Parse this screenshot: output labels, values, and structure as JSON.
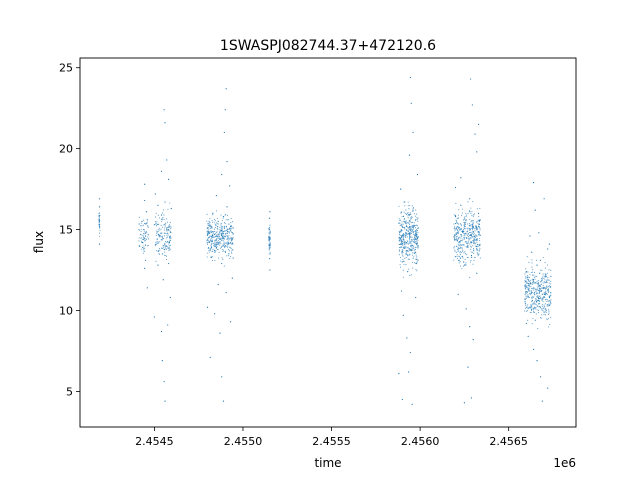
{
  "chart_data": {
    "type": "scatter",
    "title": "1SWASPJ082744.37+472120.6",
    "xlabel": "time",
    "ylabel": "flux",
    "x_offset_label": "1e6",
    "xlim": [
      2454080,
      2456880
    ],
    "ylim": [
      2.8,
      25.6
    ],
    "x_ticks": [
      2454500,
      2455000,
      2455500,
      2456000,
      2456500
    ],
    "x_tick_labels": [
      "2.4545",
      "2.4550",
      "2.4555",
      "2.4560",
      "2.4565"
    ],
    "y_ticks": [
      5,
      10,
      15,
      20,
      25
    ],
    "y_tick_labels": [
      "5",
      "10",
      "15",
      "20",
      "25"
    ],
    "grid": false,
    "marker_color": "#1f77b4",
    "series": [
      {
        "points": [
          [
            2454190,
            16.4
          ],
          [
            2454190,
            15.2
          ],
          [
            2454190,
            14.1
          ],
          [
            2454190,
            16.9
          ],
          [
            2454430,
            15.5
          ],
          [
            2454430,
            14.2
          ],
          [
            2454440,
            15.0
          ],
          [
            2454440,
            13.8
          ],
          [
            2454445,
            12.6
          ],
          [
            2454445,
            16.8
          ],
          [
            2454445,
            17.8
          ],
          [
            2454450,
            14.6
          ],
          [
            2454455,
            16.1
          ],
          [
            2454460,
            11.4
          ],
          [
            2454450,
            13.1
          ],
          [
            2454460,
            15.6
          ],
          [
            2454500,
            15.3
          ],
          [
            2454510,
            14.1
          ],
          [
            2454520,
            12.8
          ],
          [
            2454520,
            16.5
          ],
          [
            2454530,
            14.6
          ],
          [
            2454540,
            15.9
          ],
          [
            2454550,
            14.0
          ],
          [
            2454550,
            11.9
          ],
          [
            2454560,
            16.7
          ],
          [
            2454560,
            13.4
          ],
          [
            2454570,
            15.1
          ],
          [
            2454580,
            12.9
          ],
          [
            2454500,
            9.6
          ],
          [
            2454540,
            8.7
          ],
          [
            2454545,
            6.9
          ],
          [
            2454555,
            5.6
          ],
          [
            2454560,
            4.4
          ],
          [
            2454555,
            22.4
          ],
          [
            2454560,
            21.6
          ],
          [
            2454570,
            19.3
          ],
          [
            2454540,
            18.6
          ],
          [
            2454580,
            18.1
          ],
          [
            2454505,
            17.2
          ],
          [
            2454590,
            10.8
          ],
          [
            2454575,
            9.1
          ],
          [
            2454585,
            14.2
          ],
          [
            2454595,
            16.3
          ],
          [
            2454800,
            15.1
          ],
          [
            2454810,
            14.2
          ],
          [
            2454820,
            13.3
          ],
          [
            2454830,
            16.0
          ],
          [
            2454840,
            14.7
          ],
          [
            2454850,
            13.9
          ],
          [
            2454860,
            15.5
          ],
          [
            2454870,
            14.4
          ],
          [
            2454880,
            12.9
          ],
          [
            2454890,
            15.8
          ],
          [
            2454900,
            14.0
          ],
          [
            2454910,
            16.4
          ],
          [
            2454920,
            13.5
          ],
          [
            2454930,
            15.2
          ],
          [
            2454940,
            14.8
          ],
          [
            2454860,
            11.6
          ],
          [
            2454905,
            11.1
          ],
          [
            2454925,
            17.7
          ],
          [
            2454880,
            18.4
          ],
          [
            2454840,
            9.8
          ],
          [
            2454870,
            8.6
          ],
          [
            2454880,
            5.9
          ],
          [
            2454890,
            4.4
          ],
          [
            2454900,
            22.4
          ],
          [
            2454905,
            23.7
          ],
          [
            2454895,
            21.0
          ],
          [
            2454800,
            10.2
          ],
          [
            2454930,
            9.3
          ],
          [
            2454910,
            19.2
          ],
          [
            2454850,
            17.1
          ],
          [
            2454940,
            12.0
          ],
          [
            2454815,
            7.1
          ],
          [
            2455150,
            15.7
          ],
          [
            2455150,
            14.5
          ],
          [
            2455150,
            13.2
          ],
          [
            2455152,
            16.1
          ],
          [
            2455152,
            12.5
          ],
          [
            2455148,
            15.0
          ],
          [
            2455880,
            15.4
          ],
          [
            2455890,
            14.1
          ],
          [
            2455900,
            13.0
          ],
          [
            2455910,
            16.7
          ],
          [
            2455920,
            14.8
          ],
          [
            2455930,
            12.4
          ],
          [
            2455940,
            15.9
          ],
          [
            2455950,
            13.7
          ],
          [
            2455960,
            16.2
          ],
          [
            2455970,
            14.4
          ],
          [
            2455980,
            12.9
          ],
          [
            2455990,
            15.1
          ],
          [
            2455905,
            9.7
          ],
          [
            2455925,
            8.3
          ],
          [
            2455935,
            6.2
          ],
          [
            2455945,
            7.4
          ],
          [
            2455900,
            4.5
          ],
          [
            2455955,
            4.2
          ],
          [
            2455945,
            24.4
          ],
          [
            2455950,
            22.8
          ],
          [
            2455960,
            21.0
          ],
          [
            2455940,
            19.6
          ],
          [
            2455985,
            18.4
          ],
          [
            2455890,
            17.5
          ],
          [
            2455975,
            10.8
          ],
          [
            2455895,
            11.2
          ],
          [
            2455880,
            6.1
          ],
          [
            2456200,
            15.8
          ],
          [
            2456210,
            14.3
          ],
          [
            2456220,
            13.1
          ],
          [
            2456230,
            16.5
          ],
          [
            2456240,
            14.9
          ],
          [
            2456250,
            12.8
          ],
          [
            2456260,
            15.6
          ],
          [
            2456270,
            14.0
          ],
          [
            2456280,
            16.9
          ],
          [
            2456290,
            13.4
          ],
          [
            2456300,
            15.2
          ],
          [
            2456310,
            14.6
          ],
          [
            2456320,
            12.3
          ],
          [
            2456330,
            16.0
          ],
          [
            2456215,
            11.0
          ],
          [
            2456260,
            10.1
          ],
          [
            2456280,
            9.0
          ],
          [
            2456300,
            8.2
          ],
          [
            2456270,
            6.5
          ],
          [
            2456250,
            4.3
          ],
          [
            2456290,
            4.6
          ],
          [
            2456285,
            24.3
          ],
          [
            2456295,
            22.7
          ],
          [
            2456310,
            20.9
          ],
          [
            2456320,
            19.8
          ],
          [
            2456230,
            18.2
          ],
          [
            2456200,
            17.6
          ],
          [
            2456330,
            21.5
          ],
          [
            2456600,
            12.4
          ],
          [
            2456610,
            11.3
          ],
          [
            2456620,
            10.2
          ],
          [
            2456630,
            13.6
          ],
          [
            2456640,
            11.9
          ],
          [
            2456650,
            9.4
          ],
          [
            2456660,
            12.8
          ],
          [
            2456670,
            10.6
          ],
          [
            2456680,
            13.1
          ],
          [
            2456690,
            11.0
          ],
          [
            2456700,
            9.9
          ],
          [
            2456710,
            12.2
          ],
          [
            2456720,
            13.8
          ],
          [
            2456730,
            10.8
          ],
          [
            2456610,
            8.4
          ],
          [
            2456640,
            7.6
          ],
          [
            2456660,
            6.9
          ],
          [
            2456680,
            5.9
          ],
          [
            2456690,
            4.4
          ],
          [
            2456720,
            5.2
          ],
          [
            2456640,
            17.9
          ],
          [
            2456650,
            16.2
          ],
          [
            2456700,
            16.9
          ],
          [
            2456620,
            14.6
          ],
          [
            2456730,
            14.1
          ],
          [
            2456600,
            9.2
          ],
          [
            2456670,
            14.8
          ]
        ]
      }
    ],
    "segments": [
      {
        "x": 2454190,
        "ylo": 14.2,
        "yhi": 16.7,
        "n": 30,
        "w": 6
      },
      {
        "x": 2454440,
        "ylo": 12.4,
        "yhi": 16.9,
        "n": 70,
        "w": 55
      },
      {
        "x": 2454550,
        "ylo": 11.8,
        "yhi": 17.4,
        "n": 160,
        "w": 90
      },
      {
        "x": 2454870,
        "ylo": 12.1,
        "yhi": 16.9,
        "n": 380,
        "w": 150
      },
      {
        "x": 2455150,
        "ylo": 12.6,
        "yhi": 16.1,
        "n": 50,
        "w": 10
      },
      {
        "x": 2455935,
        "ylo": 11.3,
        "yhi": 17.8,
        "n": 420,
        "w": 110
      },
      {
        "x": 2456265,
        "ylo": 11.6,
        "yhi": 17.6,
        "n": 420,
        "w": 150
      },
      {
        "x": 2456665,
        "ylo": 8.0,
        "yhi": 14.2,
        "n": 420,
        "w": 150
      }
    ]
  }
}
